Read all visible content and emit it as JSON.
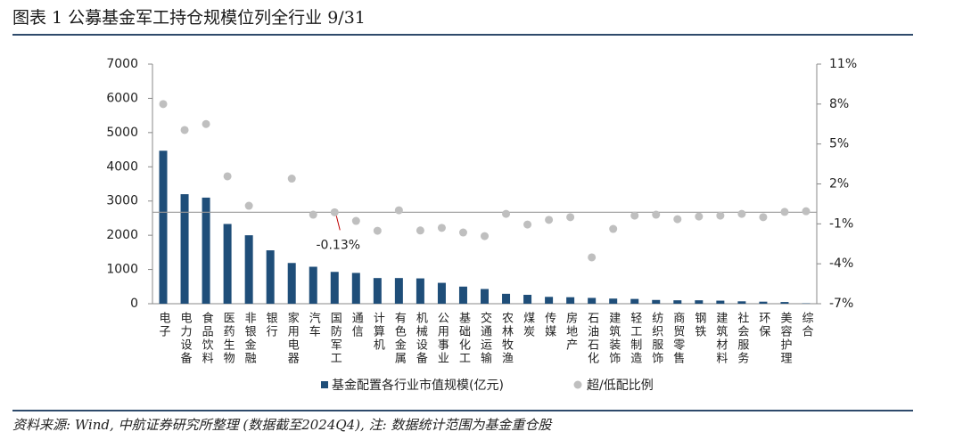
{
  "header": {
    "title": "图表 1 公募基金军工持仓规模位列全行业 9/31"
  },
  "chart_data": {
    "type": "bar-dot",
    "categories": [
      "电子",
      "电力设备",
      "食品饮料",
      "医药生物",
      "非银金融",
      "银行",
      "家用电器",
      "汽车",
      "国防军工",
      "通信",
      "计算机",
      "有色金属",
      "机械设备",
      "公用事业",
      "基础化工",
      "交通运输",
      "农林牧渔",
      "煤炭",
      "传媒",
      "房地产",
      "石油石化",
      "建筑装饰",
      "轻工制造",
      "纺织服饰",
      "商贸零售",
      "钢铁",
      "建筑材料",
      "社会服务",
      "环保",
      "美容护理",
      "综合"
    ],
    "series": [
      {
        "name": "基金配置各行业市值规模(亿元)",
        "color": "#1f4e79",
        "values": [
          4470,
          3200,
          3100,
          2330,
          2000,
          1560,
          1190,
          1080,
          930,
          900,
          750,
          750,
          740,
          610,
          500,
          430,
          290,
          260,
          200,
          190,
          170,
          150,
          140,
          110,
          100,
          100,
          90,
          70,
          60,
          50,
          10
        ]
      },
      {
        "name": "超/低配比例",
        "color": "#bfbfbf",
        "axis": "y2",
        "values": [
          8.0,
          6.05,
          6.5,
          2.57,
          0.36,
          null,
          2.4,
          -0.31,
          -0.13,
          -0.78,
          -1.52,
          0.02,
          -1.5,
          -1.3,
          -1.65,
          -1.92,
          -0.25,
          -1.05,
          -0.7,
          -0.5,
          -3.52,
          -1.38,
          -0.38,
          -0.31,
          -0.65,
          -0.45,
          -0.38,
          -0.25,
          -0.5,
          -0.1,
          -0.05
        ]
      }
    ],
    "ylim": [
      0,
      7000
    ],
    "yticks": [
      0,
      1000,
      2000,
      3000,
      4000,
      5000,
      6000,
      7000
    ],
    "y2lim": [
      -7,
      11
    ],
    "y2ticks": [
      {
        "value": -7,
        "label": "-7%"
      },
      {
        "value": -4,
        "label": "-4%"
      },
      {
        "value": -1,
        "label": "-1%"
      },
      {
        "value": 2,
        "label": "2%"
      },
      {
        "value": 5,
        "label": "5%"
      },
      {
        "value": 8,
        "label": "8%"
      },
      {
        "value": 11,
        "label": "11%"
      }
    ],
    "annotation": {
      "value": -0.13,
      "label": "-0.13%",
      "color": "#c00000"
    }
  },
  "footer": {
    "source": "资料来源: Wind, 中航证券研究所整理 (数据截至2024Q4), 注: 数据统计范围为基金重仓股"
  }
}
